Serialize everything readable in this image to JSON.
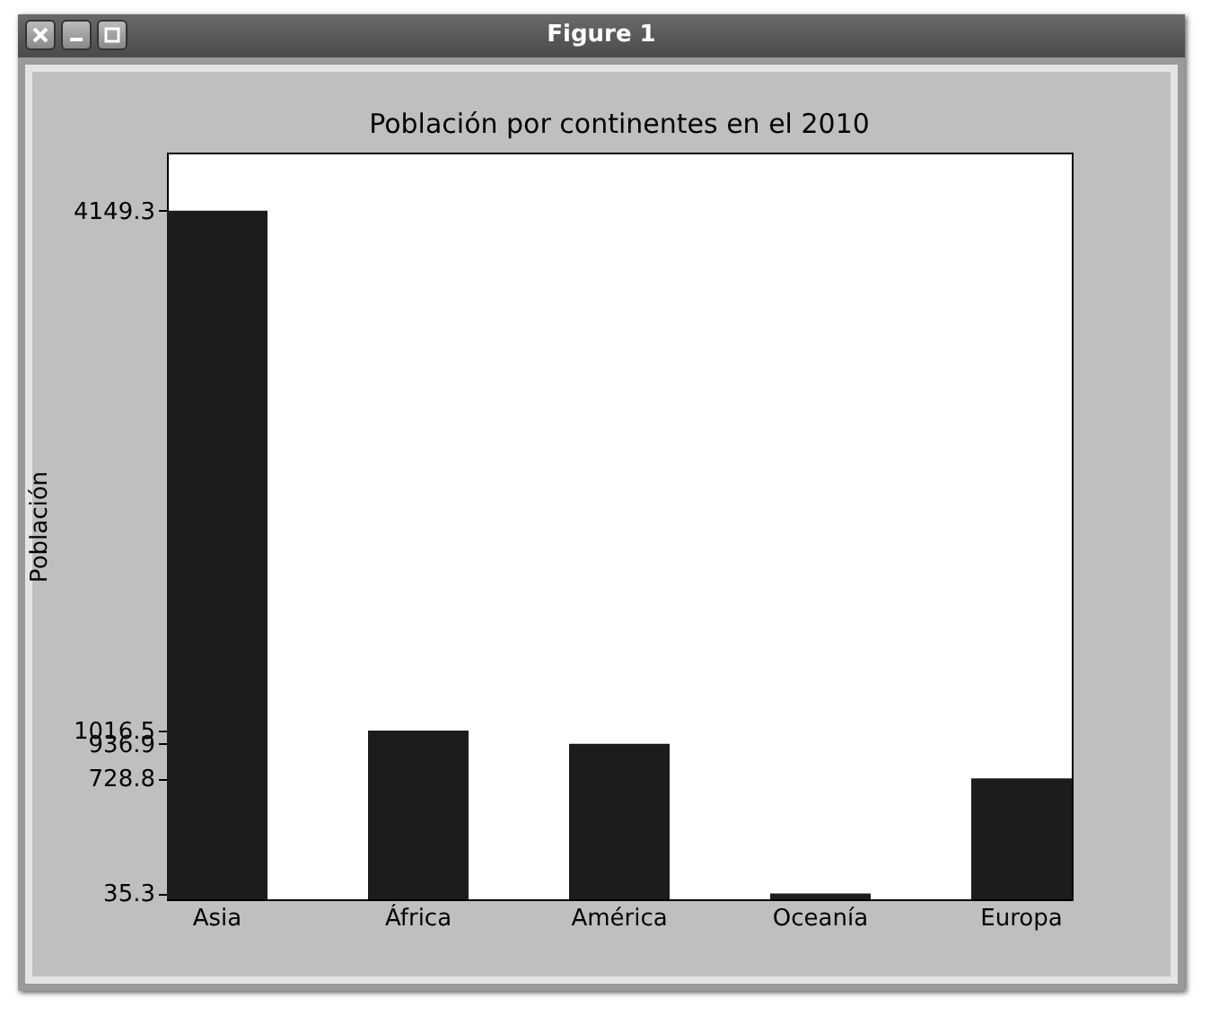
{
  "chart_data": {
    "type": "bar",
    "title": "Población por continentes en el 2010",
    "ylabel": "Población",
    "categories": [
      "Asia",
      "África",
      "América",
      "Oceanía",
      "Europa"
    ],
    "values": [
      4149.3,
      1016.5,
      936.9,
      35.3,
      728.8
    ],
    "color": "#1c1c1c",
    "ylim": [
      0,
      4500
    ],
    "yticks": [
      35.3,
      728.8,
      936.9,
      1016.5,
      4149.3
    ],
    "annotations": [
      "Figure 1"
    ]
  }
}
